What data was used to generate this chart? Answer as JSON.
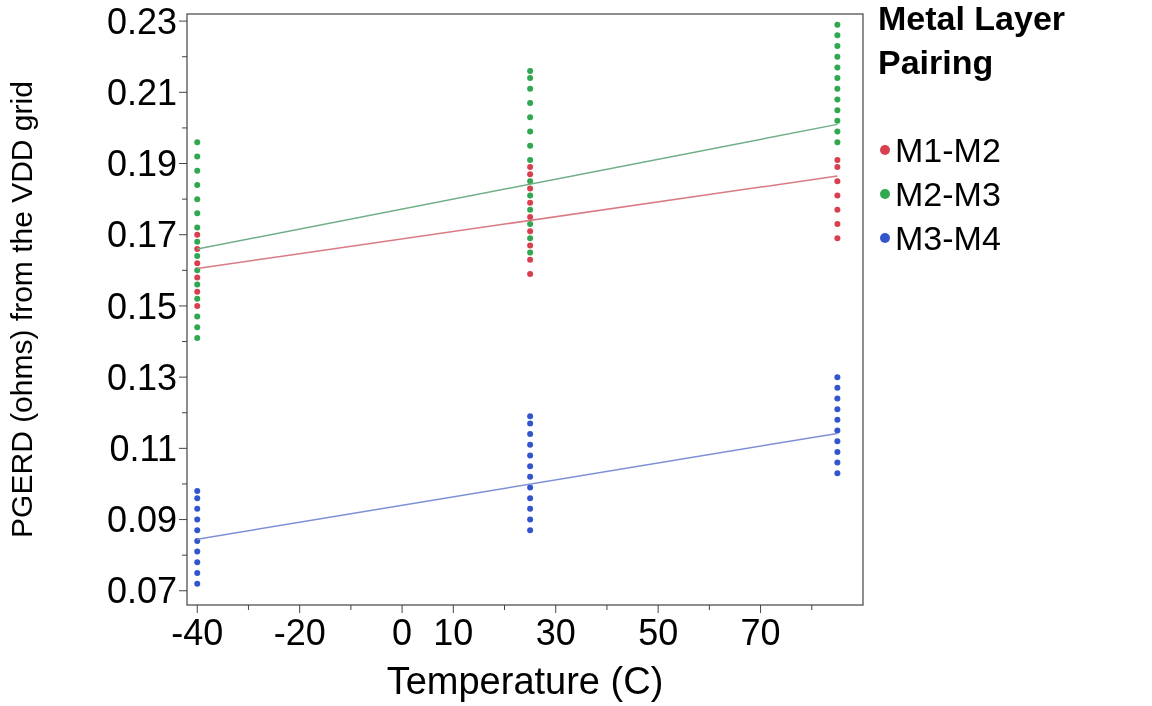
{
  "chart_data": {
    "type": "scatter",
    "xlabel": "Temperature (C)",
    "ylabel": "PGERD (ohms) from the VDD grid",
    "legend_title": "Metal Layer Pairing",
    "legend": "right",
    "grid": false,
    "marker": "circle",
    "xlim": [
      -42,
      90
    ],
    "ylim": [
      0.066,
      0.232
    ],
    "xticks": [
      -40,
      {
        "value": -30,
        "label": null
      },
      -20,
      {
        "value": -10,
        "label": null
      },
      0,
      10,
      {
        "value": 20,
        "label": null
      },
      30,
      {
        "value": 40,
        "label": null
      },
      50,
      {
        "value": 60,
        "label": null
      },
      70,
      {
        "value": 80,
        "label": null
      }
    ],
    "yticks": [
      0.07,
      {
        "value": 0.08,
        "label": null
      },
      0.09,
      {
        "value": 0.1,
        "label": null
      },
      0.11,
      {
        "value": 0.12,
        "label": null
      },
      0.13,
      {
        "value": 0.14,
        "label": null
      },
      0.15,
      {
        "value": 0.16,
        "label": null
      },
      0.17,
      {
        "value": 0.18,
        "label": null
      },
      0.19,
      {
        "value": 0.2,
        "label": null
      },
      0.21,
      {
        "value": 0.22,
        "label": null
      },
      0.23
    ],
    "series": [
      {
        "name": "M1-M2",
        "color": "#d9404f",
        "x": [
          -40,
          -40,
          -40,
          -40,
          -40,
          -40,
          25,
          25,
          25,
          25,
          25,
          25,
          25,
          25,
          25,
          85,
          85,
          85,
          85,
          85,
          85,
          85
        ],
        "values": [
          0.15,
          0.154,
          0.158,
          0.162,
          0.166,
          0.17,
          0.159,
          0.163,
          0.167,
          0.171,
          0.175,
          0.179,
          0.183,
          0.187,
          0.189,
          0.169,
          0.173,
          0.177,
          0.181,
          0.185,
          0.189,
          0.191
        ]
      },
      {
        "name": "M2-M3",
        "color": "#2fa84f",
        "x": [
          -40,
          -40,
          -40,
          -40,
          -40,
          -40,
          -40,
          -40,
          -40,
          -40,
          -40,
          -40,
          -40,
          -40,
          -40,
          25,
          25,
          25,
          25,
          25,
          25,
          25,
          25,
          25,
          25,
          25,
          25,
          25,
          25,
          85,
          85,
          85,
          85,
          85,
          85,
          85,
          85,
          85,
          85,
          85,
          85
        ],
        "values": [
          0.141,
          0.144,
          0.147,
          0.152,
          0.156,
          0.16,
          0.164,
          0.168,
          0.172,
          0.176,
          0.18,
          0.184,
          0.188,
          0.192,
          0.196,
          0.165,
          0.169,
          0.173,
          0.177,
          0.181,
          0.185,
          0.191,
          0.195,
          0.199,
          0.203,
          0.207,
          0.211,
          0.214,
          0.216,
          0.196,
          0.199,
          0.202,
          0.205,
          0.208,
          0.211,
          0.214,
          0.217,
          0.22,
          0.223,
          0.226,
          0.229
        ]
      },
      {
        "name": "M3-M4",
        "color": "#3355cc",
        "x": [
          -40,
          -40,
          -40,
          -40,
          -40,
          -40,
          -40,
          -40,
          -40,
          -40,
          25,
          25,
          25,
          25,
          25,
          25,
          25,
          25,
          25,
          25,
          25,
          25,
          85,
          85,
          85,
          85,
          85,
          85,
          85,
          85,
          85,
          85
        ],
        "values": [
          0.072,
          0.075,
          0.078,
          0.081,
          0.084,
          0.087,
          0.09,
          0.093,
          0.096,
          0.098,
          0.087,
          0.09,
          0.093,
          0.096,
          0.099,
          0.102,
          0.105,
          0.108,
          0.111,
          0.114,
          0.117,
          0.119,
          0.103,
          0.106,
          0.109,
          0.112,
          0.115,
          0.118,
          0.121,
          0.124,
          0.127,
          0.13
        ]
      },
      {
        "type": "line",
        "marker": "none",
        "color": "#d97a84",
        "x": [
          -40,
          85
        ],
        "values": [
          0.1605,
          0.1865
        ]
      },
      {
        "type": "line",
        "marker": "none",
        "color": "#6fae86",
        "x": [
          -40,
          85
        ],
        "values": [
          0.166,
          0.201
        ]
      },
      {
        "type": "line",
        "marker": "none",
        "color": "#7f8fd6",
        "x": [
          -40,
          85
        ],
        "values": [
          0.0845,
          0.1142
        ]
      }
    ]
  }
}
